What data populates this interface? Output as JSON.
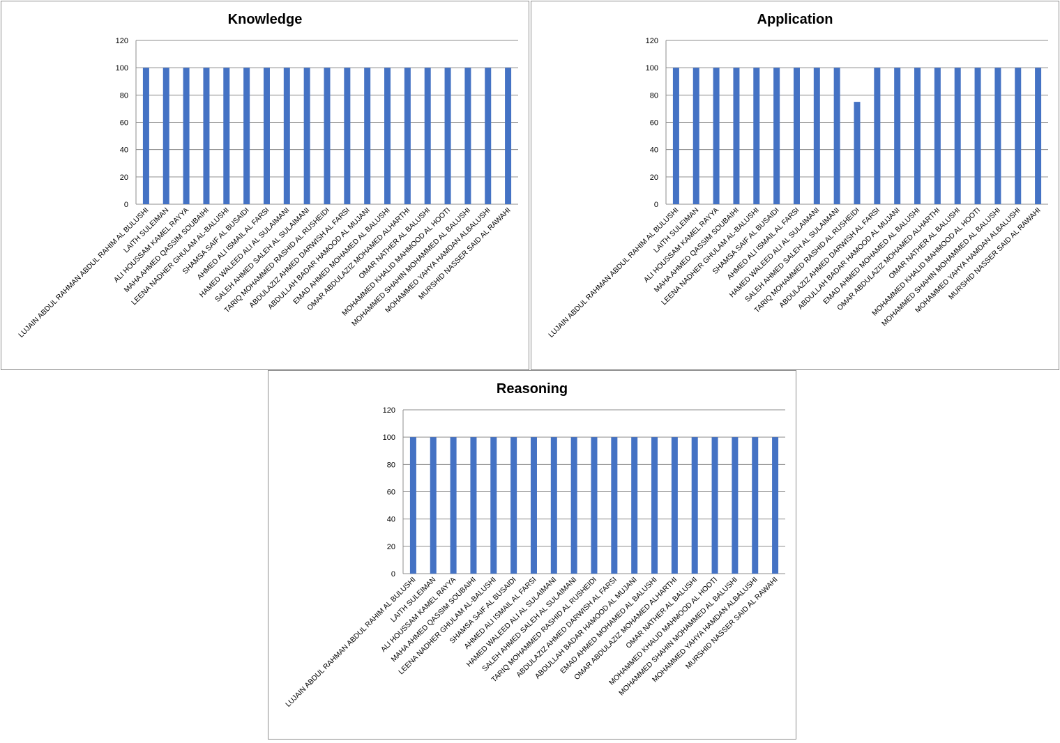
{
  "colors": {
    "bar": "#4472C4",
    "grid": "#8c8c8c",
    "axis": "#8c8c8c",
    "border": "#8c8c8c"
  },
  "chart_data": [
    {
      "type": "bar",
      "title": "Knowledge",
      "xlabel": "",
      "ylabel": "",
      "ylim": [
        0,
        120
      ],
      "yticks": [
        "0",
        "20",
        "40",
        "60",
        "80",
        "100",
        "120"
      ],
      "grid": true,
      "legend": "none",
      "categories": [
        "LUJAIN ABDUL RAHMAN ABDUL RAHIM AL BULUSHI",
        "LAITH SULEIMAN",
        "ALI HOUSSAM KAMEL RAYYA",
        "MAHA AHMED QASSIM SOUBAIHI",
        "LEENA NADHER GHULAM AL-BALUSHI",
        "SHAMSA SAIF AL BUSAIDI",
        "AHMED ALI ISMAIL AL FARSI",
        "HAMED WALEED ALI AL SULAIMANI",
        "SALEH AHMED SALEH AL SULAIMANI",
        "TARIQ MOHAMMED RASHID AL RUSHEIDI",
        "ABDULAZIZ AHMED DARWISH AL FARSI",
        "ABDULLAH BADAR HAMOOD AL MUJANI",
        "EMAD AHMED MOHAMED AL BALUSHI",
        "OMAR ABDULAZIZ MOHAMED ALHARTHI",
        "OMAR NATHER AL BALUSHI",
        "MOHAMMED KHALID MAHMOOD AL HOOTI",
        "MOHAMMED SHAHIN MOHAMMED AL BALUSHI",
        "MOHAMMED YAHYA HAMDAN ALBALUSHI",
        "MURSHID NASSER SAID AL RAWAHI"
      ],
      "values": [
        100,
        100,
        100,
        100,
        100,
        100,
        100,
        100,
        100,
        100,
        100,
        100,
        100,
        100,
        100,
        100,
        100,
        100,
        100
      ]
    },
    {
      "type": "bar",
      "title": "Application",
      "xlabel": "",
      "ylabel": "",
      "ylim": [
        0,
        120
      ],
      "yticks": [
        "0",
        "20",
        "40",
        "60",
        "80",
        "100",
        "120"
      ],
      "grid": true,
      "legend": "none",
      "categories": [
        "LUJAIN ABDUL RAHMAN ABDUL RAHIM AL BULUSHI",
        "LAITH SULEIMAN",
        "ALI HOUSSAM KAMEL RAYYA",
        "MAHA AHMED QASSIM SOUBAIHI",
        "LEENA NADHER GHULAM AL-BALUSHI",
        "SHAMSA SAIF AL BUSAIDI",
        "AHMED ALI ISMAIL AL FARSI",
        "HAMED WALEED ALI AL SULAIMANI",
        "SALEH AHMED SALEH AL SULAIMANI",
        "TARIQ MOHAMMED RASHID AL RUSHEIDI",
        "ABDULAZIZ AHMED DARWISH AL FARSI",
        "ABDULLAH BADAR HAMOOD AL MUJANI",
        "EMAD AHMED MOHAMED AL BALUSHI",
        "OMAR ABDULAZIZ MOHAMED ALHARTHI",
        "OMAR NATHER AL BALUSHI",
        "MOHAMMED KHALID MAHMOOD AL HOOTI",
        "MOHAMMED SHAHIN MOHAMMED AL BALUSHI",
        "MOHAMMED YAHYA HAMDAN ALBALUSHI",
        "MURSHID NASSER SAID AL RAWAHI"
      ],
      "values": [
        100,
        100,
        100,
        100,
        100,
        100,
        100,
        100,
        100,
        75,
        100,
        100,
        100,
        100,
        100,
        100,
        100,
        100,
        100
      ]
    },
    {
      "type": "bar",
      "title": "Reasoning",
      "xlabel": "",
      "ylabel": "",
      "ylim": [
        0,
        120
      ],
      "yticks": [
        "0",
        "20",
        "40",
        "60",
        "80",
        "100",
        "120"
      ],
      "grid": true,
      "legend": "none",
      "categories": [
        "LUJAIN ABDUL RAHMAN ABDUL RAHIM AL BULUSHI",
        "LAITH SULEIMAN",
        "ALI HOUSSAM KAMEL RAYYA",
        "MAHA AHMED QASSIM SOUBAIHI",
        "LEENA NADHER GHULAM AL-BALUSHI",
        "SHAMSA SAIF AL BUSAIDI",
        "AHMED ALI ISMAIL AL FARSI",
        "HAMED WALEED ALI AL SULAIMANI",
        "SALEH AHMED SALEH AL SULAIMANI",
        "TARIQ MOHAMMED RASHID AL RUSHEIDI",
        "ABDULAZIZ AHMED DARWISH AL FARSI",
        "ABDULLAH BADAR HAMOOD AL MUJANI",
        "EMAD AHMED MOHAMED AL BALUSHI",
        "OMAR ABDULAZIZ MOHAMED ALHARTHI",
        "OMAR NATHER AL BALUSHI",
        "MOHAMMED KHALID MAHMOOD AL HOOTI",
        "MOHAMMED SHAHIN MOHAMMED AL BALUSHI",
        "MOHAMMED YAHYA HAMDAN ALBALUSHI",
        "MURSHID NASSER SAID AL RAWAHI"
      ],
      "values": [
        100,
        100,
        100,
        100,
        100,
        100,
        100,
        100,
        100,
        100,
        100,
        100,
        100,
        100,
        100,
        100,
        100,
        100,
        100
      ]
    }
  ]
}
